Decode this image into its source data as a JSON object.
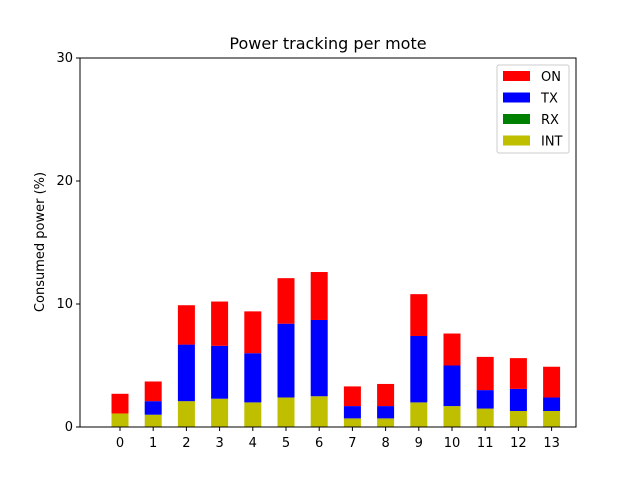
{
  "chart_data": {
    "type": "bar",
    "stacked": true,
    "title": "Power tracking per mote",
    "xlabel": "",
    "ylabel": "Consumed power (%)",
    "ylim": [
      0,
      30
    ],
    "yticks": [
      0,
      10,
      20,
      30
    ],
    "categories": [
      "0",
      "1",
      "2",
      "3",
      "4",
      "5",
      "6",
      "7",
      "8",
      "9",
      "10",
      "11",
      "12",
      "13"
    ],
    "series": [
      {
        "name": "INT",
        "color": "#bfbf00",
        "values": [
          1.1,
          1.0,
          2.1,
          2.3,
          2.0,
          2.4,
          2.5,
          0.7,
          0.7,
          2.0,
          1.7,
          1.5,
          1.3,
          1.3
        ]
      },
      {
        "name": "RX",
        "color": "#008000",
        "values": [
          0,
          0,
          0,
          0,
          0,
          0,
          0,
          0,
          0,
          0,
          0,
          0,
          0,
          0
        ]
      },
      {
        "name": "TX",
        "color": "#0000ff",
        "values": [
          0,
          1.1,
          4.6,
          4.3,
          4.0,
          6.0,
          6.2,
          1.0,
          1.0,
          5.4,
          3.3,
          1.5,
          1.8,
          1.1
        ]
      },
      {
        "name": "ON",
        "color": "#ff0000",
        "values": [
          1.6,
          1.6,
          3.2,
          3.6,
          3.4,
          3.7,
          3.9,
          1.6,
          1.8,
          3.4,
          2.6,
          2.7,
          2.5,
          2.5
        ]
      }
    ],
    "legend_order": [
      "ON",
      "TX",
      "RX",
      "INT"
    ],
    "legend_position": "top-right",
    "grid": false
  }
}
